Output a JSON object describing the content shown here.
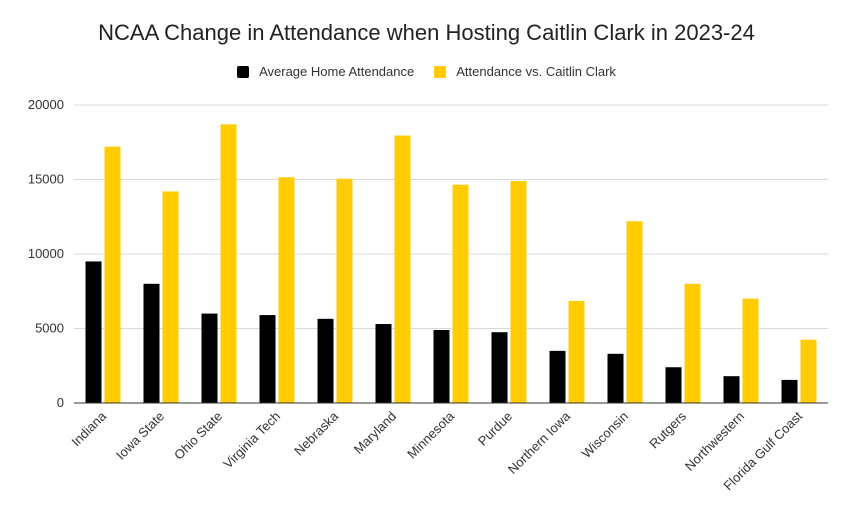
{
  "chart_data": {
    "type": "bar",
    "title": "NCAA Change in Attendance when Hosting Caitlin Clark in 2023-24",
    "xlabel": "",
    "ylabel": "",
    "ylim": [
      0,
      20000
    ],
    "yticks": [
      0,
      5000,
      10000,
      15000,
      20000
    ],
    "grid": true,
    "legend_position": "top",
    "categories": [
      "Indiana",
      "Iowa State",
      "Ohio State",
      "Virginia Tech",
      "Nebraska",
      "Maryland",
      "Minnesota",
      "Purdue",
      "Northern Iowa",
      "Wisconsin",
      "Rutgers",
      "Northwestern",
      "Florida Gulf Coast"
    ],
    "series": [
      {
        "name": "Average Home Attendance",
        "color": "#000000",
        "values": [
          9500,
          8000,
          6000,
          5900,
          5650,
          5300,
          4900,
          4750,
          3500,
          3300,
          2400,
          1800,
          1550
        ]
      },
      {
        "name": "Attendance vs. Caitlin Clark",
        "color": "#ffcc00",
        "values": [
          17200,
          14200,
          18700,
          15150,
          15050,
          17950,
          14650,
          14900,
          6850,
          12200,
          8000,
          7000,
          4250
        ]
      }
    ]
  }
}
